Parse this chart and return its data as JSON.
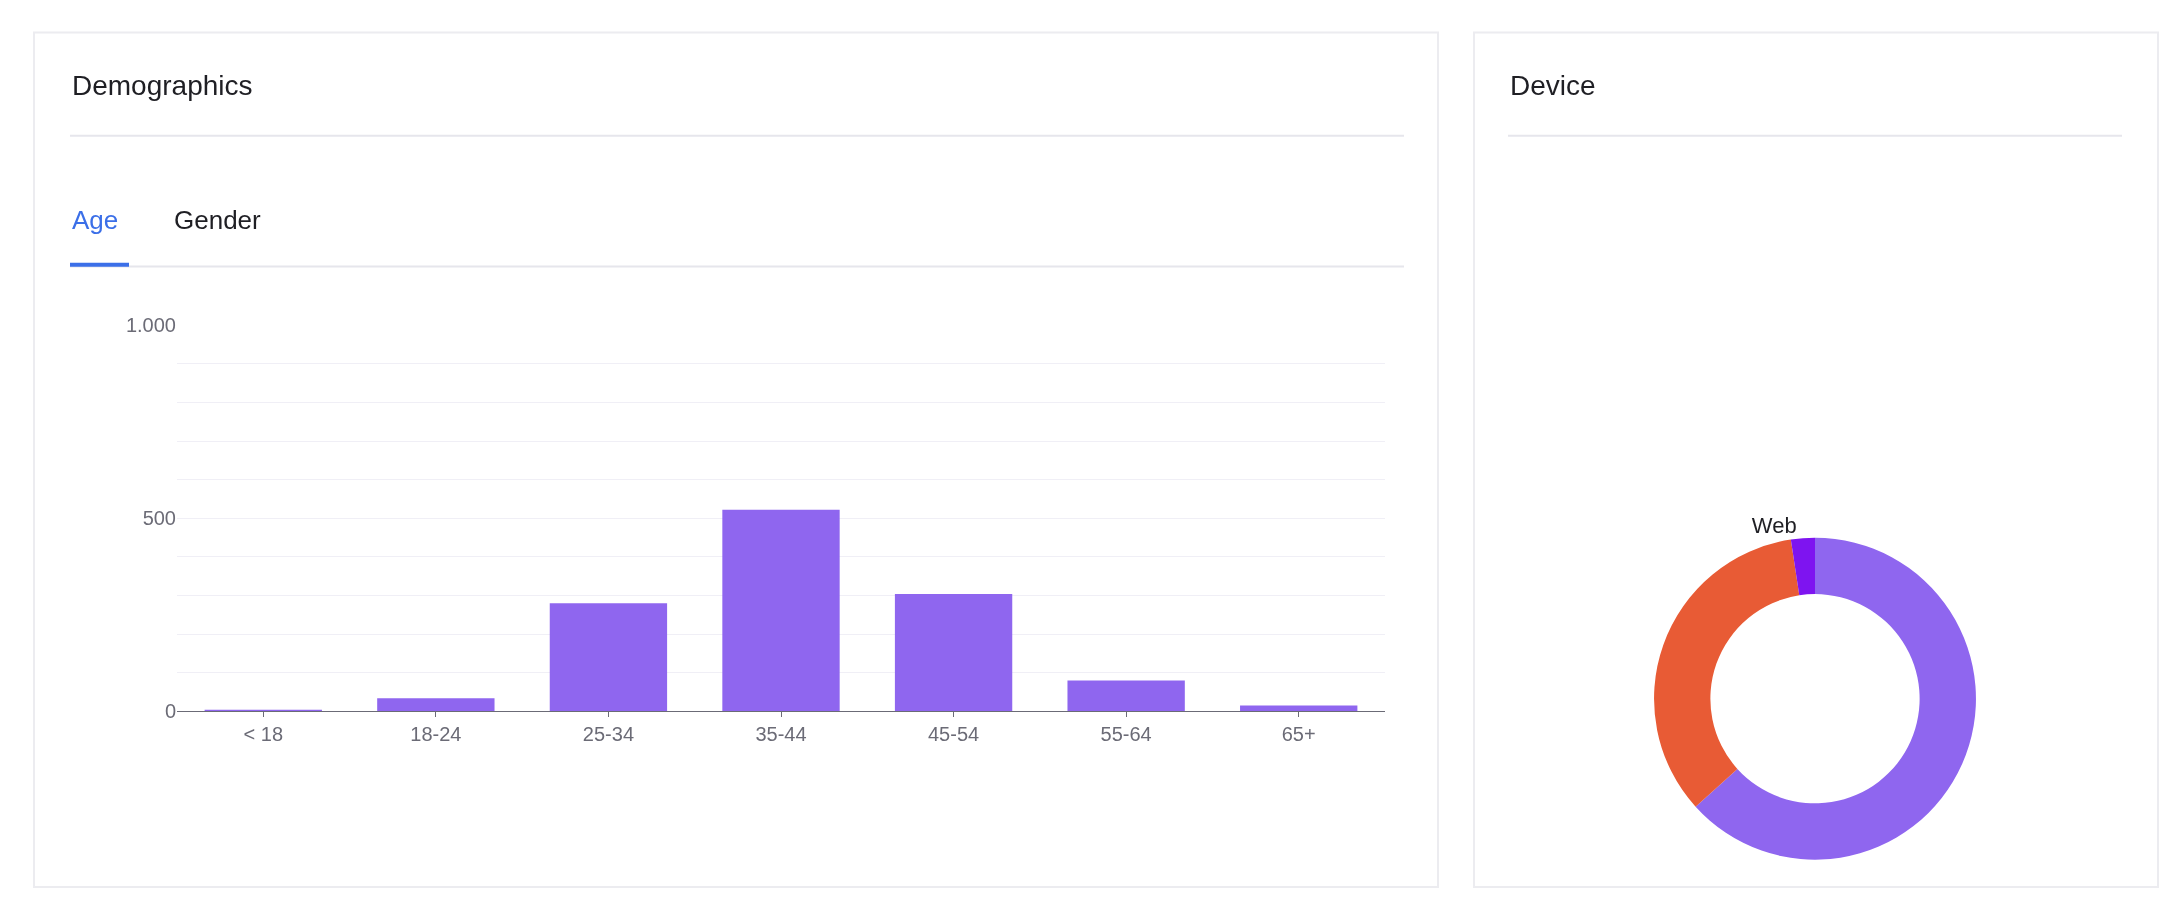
{
  "chart_data": [
    {
      "type": "bar",
      "title": "Demographics",
      "annotations": [
        "Age",
        "Gender"
      ],
      "categories": [
        "< 18",
        "18-24",
        "25-34",
        "35-44",
        "45-54",
        "55-64",
        "65+"
      ],
      "values": [
        4,
        34,
        280,
        522,
        304,
        80,
        15
      ],
      "color": "#8f66ef",
      "ylim": [
        0,
        1000
      ],
      "yticks": [
        0,
        {
          "value": 100,
          "label": null
        },
        {
          "value": 200,
          "label": null
        },
        {
          "value": 300,
          "label": null
        },
        {
          "value": 400,
          "label": null
        },
        500,
        {
          "value": 600,
          "label": null
        },
        {
          "value": 700,
          "label": null
        },
        {
          "value": 800,
          "label": null
        },
        {
          "value": 900,
          "label": null
        },
        {
          "value": 1000,
          "label": "1.000"
        }
      ],
      "grid": "y"
    },
    {
      "type": "donut",
      "title": "Device",
      "categories": [
        null,
        null,
        "Web"
      ],
      "values": [
        63.3,
        34.3,
        2.4
      ],
      "colors": [
        "#8f66ef",
        "#e85b35",
        "#7e14f0"
      ]
    }
  ]
}
